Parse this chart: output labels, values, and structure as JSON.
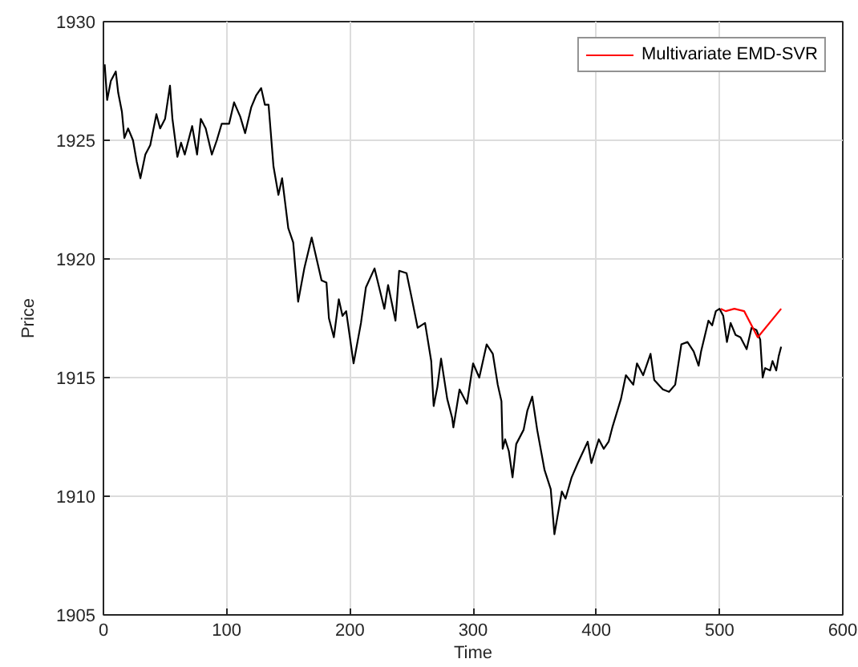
{
  "chart_data": {
    "type": "line",
    "xlabel": "Time",
    "ylabel": "Price",
    "xlim": [
      0,
      600
    ],
    "ylim": [
      1905,
      1930
    ],
    "xticks": [
      0,
      100,
      200,
      300,
      400,
      500,
      600
    ],
    "yticks": [
      1905,
      1910,
      1915,
      1920,
      1925,
      1930
    ],
    "grid": true,
    "legend": "top right",
    "series": [
      {
        "color": "#000000",
        "x": [
          1,
          3,
          6,
          10,
          12,
          15,
          17,
          20,
          24,
          27,
          30,
          34,
          38,
          43,
          46,
          50,
          54,
          56,
          60,
          63,
          66,
          72,
          76,
          79,
          83,
          88,
          92,
          96,
          102,
          106,
          111,
          115,
          120,
          124,
          128,
          131,
          134,
          138,
          142,
          145,
          150,
          154,
          158,
          163,
          169,
          173,
          177,
          181,
          183,
          187,
          191,
          194,
          197,
          203,
          209,
          213,
          220,
          228,
          231,
          237,
          240,
          246,
          250,
          255,
          261,
          266,
          268,
          271,
          274,
          279,
          283,
          284,
          289,
          295,
          300,
          305,
          311,
          316,
          320,
          323,
          324,
          326,
          329,
          332,
          335,
          341,
          344,
          348,
          352,
          358,
          363,
          366,
          372,
          375,
          380,
          385,
          393,
          396,
          402,
          406,
          410,
          413,
          420,
          424,
          430,
          433,
          438,
          444,
          447,
          454,
          459,
          464,
          469,
          474,
          479,
          483,
          485,
          491,
          494,
          497,
          500,
          503,
          506,
          509,
          513,
          517,
          522,
          526,
          530,
          533,
          535,
          537,
          541,
          543,
          546,
          548,
          550
        ],
        "values": [
          1928.2,
          1926.7,
          1927.5,
          1927.9,
          1927.0,
          1926.2,
          1925.1,
          1925.5,
          1925.0,
          1924.1,
          1923.4,
          1924.4,
          1924.8,
          1926.1,
          1925.5,
          1925.9,
          1927.3,
          1925.9,
          1924.3,
          1924.9,
          1924.4,
          1925.6,
          1924.4,
          1925.9,
          1925.5,
          1924.4,
          1925.0,
          1925.7,
          1925.7,
          1926.6,
          1926.0,
          1925.3,
          1926.4,
          1926.9,
          1927.2,
          1926.5,
          1926.5,
          1923.9,
          1922.7,
          1923.4,
          1921.3,
          1920.7,
          1918.2,
          1919.6,
          1920.9,
          1920.0,
          1919.1,
          1919.0,
          1917.5,
          1916.7,
          1918.3,
          1917.6,
          1917.8,
          1915.6,
          1917.3,
          1918.8,
          1919.6,
          1917.9,
          1918.9,
          1917.4,
          1919.5,
          1919.4,
          1918.4,
          1917.1,
          1917.3,
          1915.7,
          1913.8,
          1914.6,
          1915.8,
          1914.1,
          1913.3,
          1912.9,
          1914.5,
          1913.9,
          1915.6,
          1915.0,
          1916.4,
          1916.0,
          1914.7,
          1914.0,
          1912.0,
          1912.4,
          1911.9,
          1910.8,
          1912.2,
          1912.8,
          1913.6,
          1914.2,
          1912.8,
          1911.1,
          1910.3,
          1908.4,
          1910.2,
          1909.9,
          1910.8,
          1911.4,
          1912.3,
          1911.4,
          1912.4,
          1912.0,
          1912.3,
          1912.9,
          1914.1,
          1915.1,
          1914.7,
          1915.6,
          1915.1,
          1916.0,
          1914.9,
          1914.5,
          1914.4,
          1914.7,
          1916.4,
          1916.5,
          1916.1,
          1915.5,
          1916.1,
          1917.4,
          1917.2,
          1917.8,
          1917.9,
          1917.6,
          1916.5,
          1917.3,
          1916.8,
          1916.7,
          1916.2,
          1917.1,
          1917.0,
          1916.6,
          1915.0,
          1915.4,
          1915.3,
          1915.7,
          1915.3,
          1915.9,
          1916.3
        ]
      },
      {
        "name": "Multivariate EMD-SVR",
        "color": "#ff0000",
        "x": [
          501,
          505,
          512,
          520,
          531,
          550
        ],
        "values": [
          1917.9,
          1917.8,
          1917.9,
          1917.8,
          1916.7,
          1917.9
        ]
      }
    ]
  }
}
